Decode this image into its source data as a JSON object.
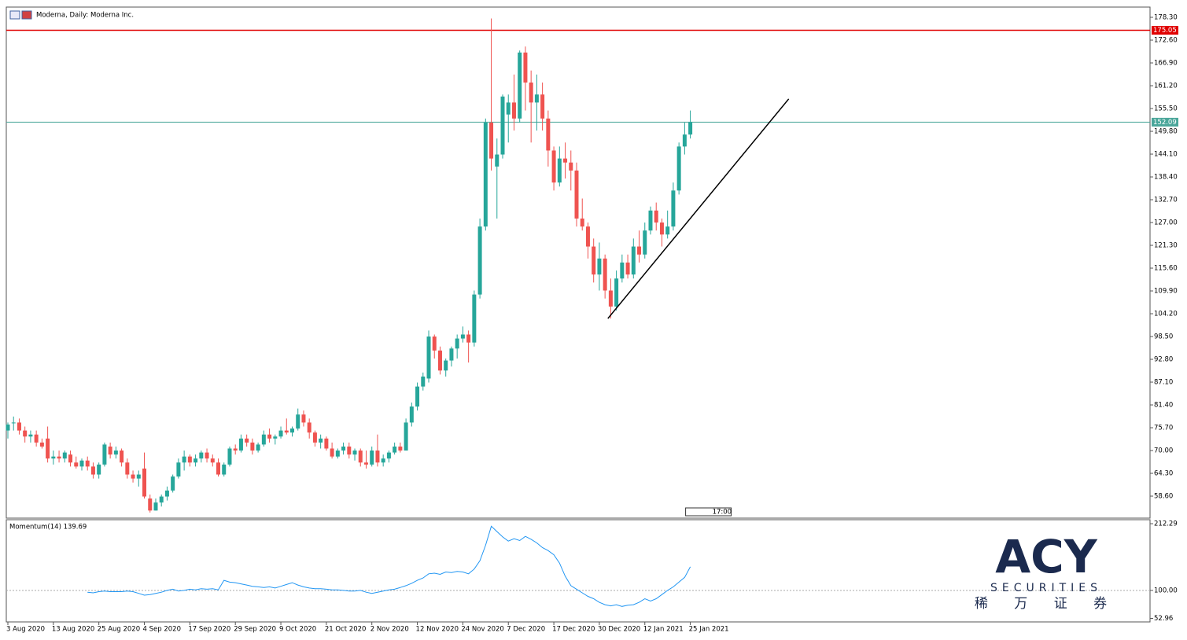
{
  "chart_data": {
    "type": "candlestick",
    "title": "Moderna, Daily:  Moderna Inc.",
    "colors": {
      "up": "#26a69a",
      "down": "#ef5350"
    },
    "ylim": [
      53.1,
      180.86
    ],
    "yticks": [
      {
        "value": 178.3,
        "label": "178.30"
      },
      {
        "value": 172.6,
        "label": "172.60"
      },
      {
        "value": 166.9,
        "label": "166.90"
      },
      {
        "value": 161.2,
        "label": "161.20"
      },
      {
        "value": 155.5,
        "label": "155.50"
      },
      {
        "value": 149.8,
        "label": "149.80"
      },
      {
        "value": 144.1,
        "label": "144.10"
      },
      {
        "value": 138.4,
        "label": "138.40"
      },
      {
        "value": 132.7,
        "label": "132.70"
      },
      {
        "value": 127,
        "label": "127.00"
      },
      {
        "value": 121.3,
        "label": "121.30"
      },
      {
        "value": 115.6,
        "label": "115.60"
      },
      {
        "value": 109.9,
        "label": "109.90"
      },
      {
        "value": 104.2,
        "label": "104.20"
      },
      {
        "value": 98.5,
        "label": "98.50"
      },
      {
        "value": 92.8,
        "label": "92.80"
      },
      {
        "value": 87.1,
        "label": "87.10"
      },
      {
        "value": 81.4,
        "label": "81.40"
      },
      {
        "value": 75.7,
        "label": "75.70"
      },
      {
        "value": 70,
        "label": "70.00"
      },
      {
        "value": 64.3,
        "label": "64.30"
      },
      {
        "value": 58.6,
        "label": "58.60"
      }
    ],
    "xticks": [
      {
        "value": 0,
        "label": "3 Aug 2020"
      },
      {
        "value": 8,
        "label": "13 Aug 2020"
      },
      {
        "value": 16,
        "label": "25 Aug 2020"
      },
      {
        "value": 24,
        "label": "4 Sep 2020"
      },
      {
        "value": 32,
        "label": "17 Sep 2020"
      },
      {
        "value": 40,
        "label": "29 Sep 2020"
      },
      {
        "value": 48,
        "label": "9 Oct 2020"
      },
      {
        "value": 56,
        "label": "21 Oct 2020"
      },
      {
        "value": 64,
        "label": "2 Nov 2020"
      },
      {
        "value": 72,
        "label": "12 Nov 2020"
      },
      {
        "value": 80,
        "label": "24 Nov 2020"
      },
      {
        "value": 88,
        "label": "7 Dec 2020"
      },
      {
        "value": 96,
        "label": "17 Dec 2020"
      },
      {
        "value": 104,
        "label": "30 Dec 2020"
      },
      {
        "value": 112,
        "label": "12 Jan 2021"
      },
      {
        "value": 120,
        "label": "25 Jan 2021"
      }
    ],
    "ohlc": [
      [
        75,
        77,
        73,
        76.5
      ],
      [
        77,
        78.5,
        75,
        77
      ],
      [
        77,
        78,
        74,
        75
      ],
      [
        75,
        76,
        72,
        73.5
      ],
      [
        73.5,
        75,
        72,
        74
      ],
      [
        74,
        75,
        71,
        72
      ],
      [
        72,
        73,
        70.5,
        71
      ],
      [
        73,
        76,
        67,
        68
      ],
      [
        68,
        70,
        66.5,
        68.5
      ],
      [
        68.5,
        70,
        67,
        68
      ],
      [
        68,
        70,
        67,
        69.5
      ],
      [
        69,
        70,
        66,
        67
      ],
      [
        67,
        68.5,
        65.5,
        66
      ],
      [
        66,
        68,
        65,
        67.5
      ],
      [
        67.5,
        68.5,
        65,
        66
      ],
      [
        66,
        67,
        63,
        64
      ],
      [
        64,
        67,
        63,
        66.5
      ],
      [
        66.5,
        72,
        66,
        71.5
      ],
      [
        71,
        72,
        68,
        69
      ],
      [
        69,
        71,
        68,
        70
      ],
      [
        70,
        70.5,
        66,
        67
      ],
      [
        67,
        68,
        63,
        64
      ],
      [
        64,
        65,
        62,
        63
      ],
      [
        63,
        65,
        61,
        64
      ],
      [
        65.5,
        69.5,
        58,
        58.5
      ],
      [
        58,
        59,
        54.5,
        55
      ],
      [
        55,
        58,
        55,
        57
      ],
      [
        57,
        59,
        56,
        58.5
      ],
      [
        58.5,
        61,
        57.5,
        60
      ],
      [
        60,
        64,
        59.5,
        63.5
      ],
      [
        63.5,
        68,
        63,
        67
      ],
      [
        67,
        70,
        65,
        68.5
      ],
      [
        68.5,
        69,
        66,
        67
      ],
      [
        67,
        69,
        66,
        68
      ],
      [
        68,
        70,
        67,
        69.5
      ],
      [
        69.5,
        70.5,
        67,
        68
      ],
      [
        68,
        69,
        66,
        67
      ],
      [
        67,
        68,
        63.5,
        64
      ],
      [
        64,
        67,
        63.5,
        66.5
      ],
      [
        66.5,
        71,
        66,
        70.5
      ],
      [
        70.5,
        71.5,
        69,
        70
      ],
      [
        70,
        74,
        69.5,
        73
      ],
      [
        73,
        74,
        71,
        72
      ],
      [
        72,
        73,
        69,
        70
      ],
      [
        70,
        72,
        69.5,
        71.5
      ],
      [
        71.5,
        75,
        71,
        74
      ],
      [
        74,
        75.5,
        72,
        73
      ],
      [
        73,
        74,
        71.5,
        73.5
      ],
      [
        73.5,
        76,
        73,
        75
      ],
      [
        75,
        78,
        74,
        74.5
      ],
      [
        74.5,
        76,
        73.5,
        75.5
      ],
      [
        75.5,
        80.5,
        75,
        79
      ],
      [
        79,
        80,
        76,
        77
      ],
      [
        77,
        78,
        73,
        74.5
      ],
      [
        74.5,
        75,
        71,
        72
      ],
      [
        72,
        74,
        70.5,
        73
      ],
      [
        73,
        73.5,
        70,
        70.5
      ],
      [
        70.5,
        72,
        68,
        68.5
      ],
      [
        68.5,
        70.5,
        68,
        70
      ],
      [
        70,
        72,
        69,
        71
      ],
      [
        71,
        72,
        68,
        69
      ],
      [
        69,
        70.5,
        67.5,
        70
      ],
      [
        70,
        70.5,
        66,
        67
      ],
      [
        67,
        70,
        65.5,
        66.5
      ],
      [
        66.5,
        71,
        66,
        70
      ],
      [
        70,
        74,
        66,
        67
      ],
      [
        67,
        69,
        66,
        68
      ],
      [
        68,
        70,
        67,
        69.5
      ],
      [
        69.5,
        72,
        69,
        71
      ],
      [
        71,
        72,
        69.5,
        70
      ],
      [
        70,
        78,
        70,
        77
      ],
      [
        77,
        82,
        76,
        81
      ],
      [
        81,
        87,
        80,
        86
      ],
      [
        86,
        89.5,
        85,
        88.5
      ],
      [
        88,
        100,
        87,
        98.5
      ],
      [
        98.5,
        99,
        93,
        95
      ],
      [
        95,
        96,
        89,
        90
      ],
      [
        90,
        93,
        88.5,
        92.5
      ],
      [
        92.5,
        96,
        91,
        95.5
      ],
      [
        95.5,
        99,
        93,
        98
      ],
      [
        98,
        101,
        97,
        99
      ],
      [
        99,
        100,
        92,
        97
      ],
      [
        97,
        110,
        96,
        109
      ],
      [
        109,
        128,
        108,
        126
      ],
      [
        126,
        153,
        125,
        152
      ],
      [
        152,
        178,
        140,
        143
      ],
      [
        141,
        148,
        128,
        144
      ],
      [
        144,
        159,
        143,
        158.5
      ],
      [
        154,
        159,
        147,
        157
      ],
      [
        157,
        164,
        150,
        153
      ],
      [
        153,
        170,
        152,
        169.5
      ],
      [
        169.5,
        171,
        155,
        162
      ],
      [
        162,
        165,
        147,
        157
      ],
      [
        157,
        164,
        150,
        159
      ],
      [
        159,
        162,
        150,
        153
      ],
      [
        153,
        155,
        141,
        145
      ],
      [
        145,
        146,
        135,
        137
      ],
      [
        137,
        146,
        136,
        143
      ],
      [
        143,
        147,
        138,
        142
      ],
      [
        142,
        145,
        135,
        140
      ],
      [
        140,
        142,
        126,
        128
      ],
      [
        128,
        133,
        125,
        126
      ],
      [
        126,
        127,
        118,
        121
      ],
      [
        121,
        123,
        112,
        114
      ],
      [
        114,
        122,
        110,
        118
      ],
      [
        118,
        119,
        108,
        110
      ],
      [
        110,
        113,
        103,
        106
      ],
      [
        106,
        115,
        105,
        113
      ],
      [
        113,
        119,
        112,
        117
      ],
      [
        117,
        119,
        113,
        114
      ],
      [
        114,
        123,
        113,
        121
      ],
      [
        121,
        125,
        117,
        119
      ],
      [
        119,
        127,
        118,
        125
      ],
      [
        125,
        131,
        124,
        130
      ],
      [
        130,
        132,
        125,
        127
      ],
      [
        127,
        128,
        121,
        124
      ],
      [
        124,
        130,
        123,
        126
      ],
      [
        126,
        137,
        125,
        135
      ],
      [
        135,
        147,
        134,
        146
      ],
      [
        146,
        152,
        144,
        149
      ],
      [
        149,
        155,
        148,
        152.09
      ]
    ],
    "hlines": [
      {
        "value": 175.05,
        "color": "#e00000"
      },
      {
        "value": 152.09,
        "color": "#4aa69a"
      }
    ],
    "trendline": {
      "start": [
        105.5,
        103
      ],
      "end": [
        137.3,
        157.9
      ],
      "color": "#000000"
    },
    "time_label": "17:00",
    "indicator": {
      "title": "Momentum(14) 139.69",
      "color": "#2196f3",
      "ylim": [
        47,
        219
      ],
      "yticks": [
        {
          "value": 212.29,
          "label": "212.29"
        },
        {
          "value": 100,
          "label": "100.00"
        },
        {
          "value": 52.96,
          "label": "52.96"
        }
      ],
      "level": 100,
      "values": [
        null,
        null,
        null,
        null,
        null,
        null,
        null,
        null,
        null,
        null,
        null,
        null,
        null,
        null,
        97,
        96,
        98,
        99,
        98,
        98,
        98,
        99,
        98,
        95,
        92,
        93,
        95,
        97,
        100,
        102,
        99,
        100,
        102,
        101,
        103,
        102,
        103,
        101,
        117,
        114,
        113,
        111,
        109,
        107,
        106,
        105,
        106,
        104,
        107,
        110,
        113,
        109,
        106,
        104,
        103,
        103,
        102,
        101,
        101,
        100,
        99,
        99,
        100,
        97,
        95,
        97,
        99,
        101,
        102,
        105,
        108,
        112,
        117,
        121,
        128,
        129,
        127,
        131,
        130,
        132,
        131,
        128,
        136,
        150,
        176,
        208,
        199,
        190,
        183,
        187,
        184,
        191,
        186,
        180,
        172,
        167,
        160,
        146,
        124,
        108,
        102,
        96,
        90,
        86,
        80,
        76,
        74,
        76,
        73,
        75,
        76,
        80,
        86,
        82,
        86,
        93,
        100,
        106,
        114,
        122,
        139.69
      ]
    },
    "watermark": {
      "brand": "ACY",
      "sub": "SECURITIES",
      "chinese": "稀 万 证 券"
    }
  }
}
